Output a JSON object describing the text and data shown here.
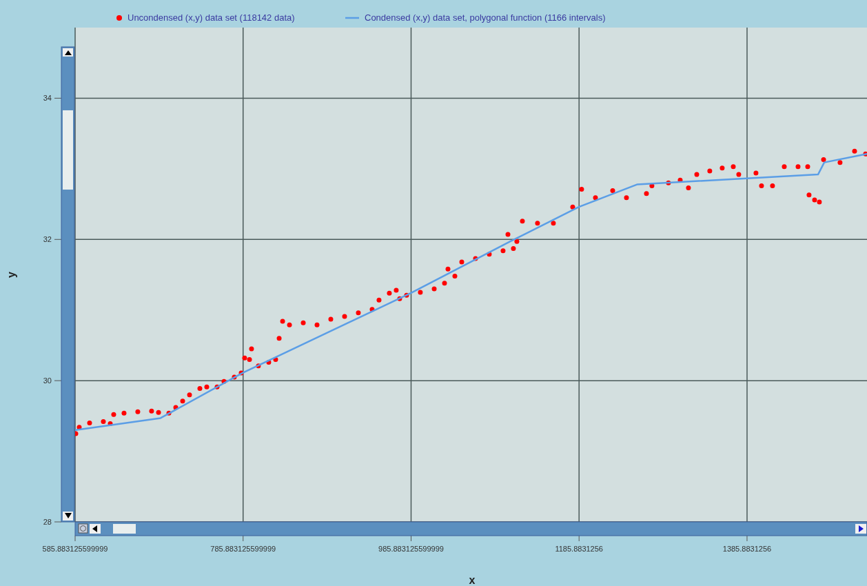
{
  "chart_data": {
    "type": "scatter",
    "xlabel": "x",
    "ylabel": "y",
    "xlim": [
      585.8831256,
      1528.7
    ],
    "ylim": [
      28,
      35
    ],
    "xticks": [
      {
        "value": 585.8831256,
        "label": "585.883125599999"
      },
      {
        "value": 785.8831256,
        "label": "785.883125599999"
      },
      {
        "value": 985.8831256,
        "label": "985.883125599999"
      },
      {
        "value": 1185.8831256,
        "label": "1185.8831256"
      },
      {
        "value": 1385.8831256,
        "label": "1385.8831256"
      }
    ],
    "yticks": [
      28,
      30,
      32,
      34
    ],
    "grid": true,
    "legend": "top",
    "series": [
      {
        "name": "Uncondensed (x,y) data set (118142 data)",
        "marker": "circle",
        "color": "#ff0000",
        "x": [
          586.7,
          590.8,
          603.1,
          619.5,
          627.7,
          631.8,
          644.1,
          660.5,
          676.9,
          685.2,
          697.5,
          705.7,
          713.9,
          722.1,
          734.4,
          742.6,
          754.9,
          763.1,
          775.4,
          783.6,
          787.7,
          793.5,
          795.9,
          804.1,
          816.4,
          824.6,
          828.8,
          832.9,
          841.1,
          857.5,
          873.9,
          890.3,
          906.7,
          923.1,
          939.5,
          947.7,
          960.0,
          968.2,
          972.3,
          980.5,
          996.9,
          1013.4,
          1025.7,
          1029.8,
          1038.0,
          1046.2,
          1062.6,
          1079.0,
          1095.4,
          1101.2,
          1107.7,
          1111.8,
          1118.4,
          1136.4,
          1155.3,
          1178.3,
          1188.9,
          1205.4,
          1225.9,
          1242.3,
          1266.1,
          1272.6,
          1292.3,
          1306.3,
          1316.1,
          1326.0,
          1341.5,
          1356.3,
          1369.5,
          1376.0,
          1396.5,
          1403.1,
          1416.2,
          1430.2,
          1446.6,
          1458.1,
          1459.7,
          1466.3,
          1472.0,
          1477.0,
          1496.6,
          1513.9,
          1527.0
        ],
        "values": [
          29.25,
          29.34,
          29.4,
          29.42,
          29.39,
          29.52,
          29.54,
          29.56,
          29.57,
          29.55,
          29.54,
          29.62,
          29.71,
          29.8,
          29.89,
          29.91,
          29.91,
          29.99,
          30.05,
          30.11,
          30.32,
          30.3,
          30.45,
          30.21,
          30.26,
          30.3,
          30.6,
          30.84,
          30.79,
          30.82,
          30.79,
          30.87,
          30.91,
          30.96,
          31.01,
          31.14,
          31.24,
          31.28,
          31.16,
          31.21,
          31.25,
          31.3,
          31.38,
          31.58,
          31.48,
          31.68,
          31.73,
          31.79,
          31.84,
          32.07,
          31.87,
          31.97,
          32.26,
          32.23,
          32.23,
          32.46,
          32.71,
          32.59,
          32.69,
          32.59,
          32.65,
          32.76,
          32.8,
          32.84,
          32.73,
          32.92,
          32.97,
          33.01,
          33.03,
          32.92,
          32.94,
          32.76,
          32.76,
          33.03,
          33.03,
          33.03,
          32.63,
          32.56,
          32.53,
          33.13,
          33.09,
          33.25,
          33.21
        ]
      },
      {
        "name": "Condensed (x,y) data set, polygonal function (1166 intervals)",
        "type": "line",
        "marker": "none",
        "line_style": "solid",
        "color": "#5b9ee6",
        "x": [
          586.7,
          687.6,
          785.3,
          985.5,
          1103.6,
          1185.7,
          1255.4,
          1470.4,
          1477.8,
          1528.6
        ],
        "values": [
          29.3,
          29.47,
          30.11,
          31.24,
          31.97,
          32.46,
          32.78,
          32.92,
          33.09,
          33.21
        ]
      }
    ]
  }
}
